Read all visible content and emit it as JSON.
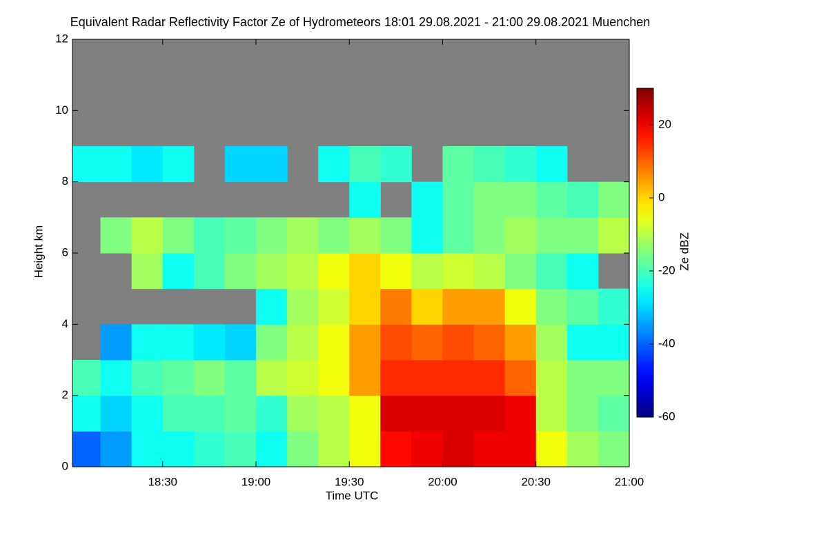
{
  "chart_data": {
    "type": "heatmap",
    "title": "Equivalent Radar Reflectivity Factor Ze of Hydrometeors   18:01 29.08.2021 - 21:00 29.08.2021 Muenchen",
    "xlabel": "Time UTC",
    "ylabel": "Height km",
    "colorbar_label": "Ze dBZ",
    "xbins": [
      18.0167,
      18.1667,
      18.3333,
      18.5,
      18.6667,
      18.8333,
      19.0,
      19.1667,
      19.3333,
      19.5,
      19.6667,
      19.8333,
      20.0,
      20.1667,
      20.3333,
      20.5,
      20.6667,
      20.8333,
      21.0
    ],
    "ybins": [
      0,
      1,
      2,
      3,
      4,
      5,
      6,
      7,
      8,
      9,
      10,
      11,
      12
    ],
    "z": [
      [
        -40,
        -35,
        -25,
        -25,
        -22,
        -20,
        -25,
        -15,
        -10,
        -5,
        18,
        20,
        22,
        20,
        20,
        -5,
        -12,
        -15
      ],
      [
        -25,
        -30,
        -25,
        -20,
        -20,
        -18,
        -22,
        -12,
        -10,
        -5,
        22,
        22,
        22,
        22,
        20,
        -10,
        -15,
        -18
      ],
      [
        -20,
        -25,
        -20,
        -18,
        -15,
        -18,
        -10,
        -8,
        -5,
        5,
        15,
        15,
        15,
        15,
        10,
        -10,
        -15,
        -15
      ],
      [
        null,
        -35,
        -25,
        -25,
        -28,
        -30,
        -15,
        -10,
        -5,
        5,
        12,
        10,
        12,
        10,
        5,
        -12,
        -25,
        -25
      ],
      [
        null,
        null,
        null,
        null,
        null,
        null,
        -25,
        -12,
        -8,
        0,
        8,
        0,
        5,
        5,
        -5,
        -15,
        -18,
        -22
      ],
      [
        null,
        null,
        -12,
        -25,
        -20,
        -15,
        -12,
        -10,
        -5,
        0,
        -5,
        -10,
        -8,
        -10,
        -15,
        -20,
        -25,
        null
      ],
      [
        null,
        -15,
        -10,
        -15,
        -20,
        -18,
        -15,
        -12,
        -15,
        -12,
        -15,
        -25,
        -18,
        -15,
        -12,
        -15,
        -15,
        -10
      ],
      [
        null,
        null,
        null,
        null,
        null,
        null,
        null,
        null,
        null,
        -25,
        null,
        -25,
        -18,
        -15,
        -15,
        -18,
        -20,
        -15
      ],
      [
        -25,
        -25,
        -28,
        -25,
        null,
        -30,
        -30,
        null,
        -25,
        -20,
        -22,
        null,
        -18,
        -20,
        -22,
        -25,
        null,
        null
      ],
      [
        null,
        null,
        null,
        null,
        null,
        null,
        null,
        null,
        null,
        null,
        null,
        null,
        null,
        null,
        null,
        null,
        null,
        null
      ],
      [
        null,
        null,
        null,
        null,
        null,
        null,
        null,
        null,
        null,
        null,
        null,
        null,
        null,
        null,
        null,
        null,
        null,
        null
      ],
      [
        null,
        null,
        null,
        null,
        null,
        null,
        null,
        null,
        null,
        null,
        null,
        null,
        null,
        null,
        null,
        null,
        null,
        null
      ]
    ],
    "xlim": [
      18.0167,
      21.0
    ],
    "ylim": [
      0,
      12
    ],
    "xticks": [
      {
        "value": 18.5,
        "label": "18:30"
      },
      {
        "value": 19.0,
        "label": "19:00"
      },
      {
        "value": 19.5,
        "label": "19:30"
      },
      {
        "value": 20.0,
        "label": "20:00"
      },
      {
        "value": 20.5,
        "label": "20:30"
      },
      {
        "value": 21.0,
        "label": "21:00"
      }
    ],
    "yticks": [
      0,
      2,
      4,
      6,
      8,
      10,
      12
    ],
    "clim": [
      -60,
      30
    ],
    "cticks": [
      -60,
      -40,
      -20,
      0,
      20
    ],
    "colormap": "jet",
    "missing_color": "#808080"
  }
}
